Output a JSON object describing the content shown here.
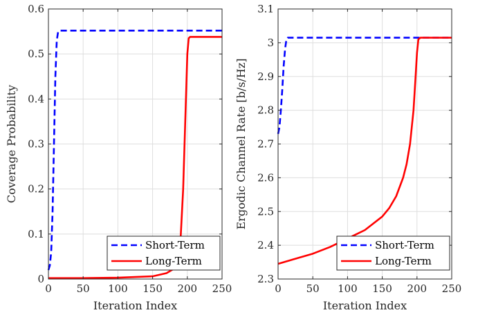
{
  "chart_data": [
    {
      "type": "line",
      "xlabel": "Iteration Index",
      "ylabel": "Coverage Probability",
      "xlim": [
        0,
        250
      ],
      "ylim": [
        0,
        0.6
      ],
      "xticks": [
        0,
        50,
        100,
        150,
        200,
        250
      ],
      "yticks": [
        0,
        0.1,
        0.2,
        0.3,
        0.4,
        0.5,
        0.6
      ],
      "grid": true,
      "legend_position": "bottom-right",
      "series": [
        {
          "name": "Short-Term",
          "color": "#0000ff",
          "style": "dashed",
          "x": [
            0,
            2,
            4,
            6,
            8,
            10,
            12,
            14,
            16,
            20,
            30,
            50,
            100,
            150,
            200,
            250
          ],
          "y": [
            0.02,
            0.03,
            0.06,
            0.15,
            0.3,
            0.45,
            0.53,
            0.55,
            0.552,
            0.552,
            0.552,
            0.552,
            0.552,
            0.552,
            0.552,
            0.552
          ]
        },
        {
          "name": "Long-Term",
          "color": "#ff0000",
          "style": "solid",
          "x": [
            0,
            50,
            100,
            150,
            170,
            180,
            185,
            190,
            194,
            197,
            200,
            202,
            204,
            206,
            210,
            250
          ],
          "y": [
            0.002,
            0.002,
            0.003,
            0.006,
            0.013,
            0.022,
            0.035,
            0.08,
            0.2,
            0.35,
            0.5,
            0.535,
            0.538,
            0.538,
            0.538,
            0.538
          ]
        }
      ]
    },
    {
      "type": "line",
      "xlabel": "Iteration Index",
      "ylabel": "Ergodic Channel Rate [b/s/Hz]",
      "xlim": [
        0,
        250
      ],
      "ylim": [
        2.3,
        3.1
      ],
      "xticks": [
        0,
        50,
        100,
        150,
        200,
        250
      ],
      "yticks": [
        2.3,
        2.4,
        2.5,
        2.6,
        2.7,
        2.8,
        2.9,
        3,
        3.1
      ],
      "grid": true,
      "legend_position": "bottom-right",
      "series": [
        {
          "name": "Short-Term",
          "color": "#0000ff",
          "style": "dashed",
          "x": [
            0,
            2,
            4,
            6,
            8,
            10,
            12,
            14,
            20,
            50,
            100,
            150,
            200,
            250
          ],
          "y": [
            2.73,
            2.75,
            2.8,
            2.86,
            2.93,
            2.98,
            3.01,
            3.015,
            3.015,
            3.015,
            3.015,
            3.015,
            3.015,
            3.015
          ]
        },
        {
          "name": "Long-Term",
          "color": "#ff0000",
          "style": "solid",
          "x": [
            0,
            25,
            50,
            75,
            100,
            125,
            150,
            160,
            170,
            180,
            185,
            190,
            195,
            198,
            200,
            202,
            205,
            250
          ],
          "y": [
            2.345,
            2.36,
            2.375,
            2.395,
            2.42,
            2.445,
            2.485,
            2.51,
            2.545,
            2.6,
            2.64,
            2.7,
            2.8,
            2.9,
            2.97,
            3.01,
            3.015,
            3.015
          ]
        }
      ]
    }
  ]
}
